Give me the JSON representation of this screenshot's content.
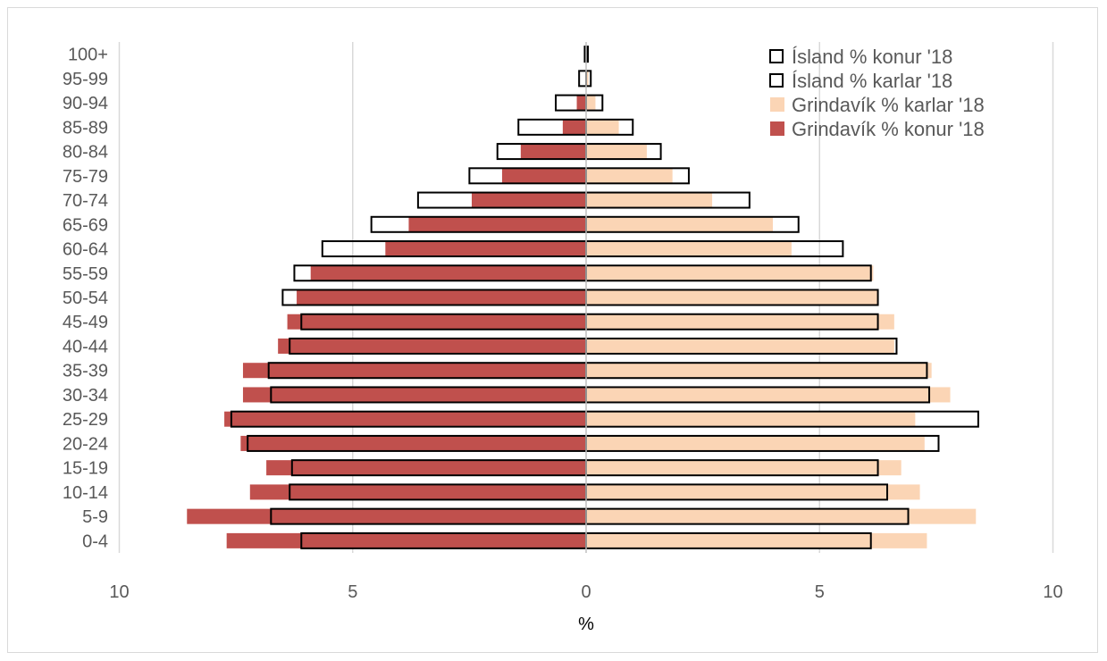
{
  "chart_data": {
    "type": "bar",
    "orientation": "horizontal",
    "title": "",
    "xlabel": "%",
    "ylabel": "",
    "xlim": [
      -10,
      10
    ],
    "x_ticks": [
      -10,
      -5,
      0,
      5,
      10
    ],
    "x_tick_labels": [
      "10",
      "5",
      "0",
      "5",
      "10"
    ],
    "grid": true,
    "legend_position": "top-right",
    "categories": [
      "0-4",
      "5-9",
      "10-14",
      "15-19",
      "20-24",
      "25-29",
      "30-34",
      "35-39",
      "40-44",
      "45-49",
      "50-54",
      "55-59",
      "60-64",
      "65-69",
      "70-74",
      "75-79",
      "80-84",
      "85-89",
      "90-94",
      "95-99",
      "100+"
    ],
    "series": [
      {
        "name": "Ísland % konur '18",
        "color": "#ffffff",
        "stroke": "#000000",
        "side": "left",
        "values": [
          6.1,
          6.75,
          6.35,
          6.3,
          7.25,
          7.6,
          6.75,
          6.8,
          6.35,
          6.1,
          6.5,
          6.25,
          5.65,
          4.6,
          3.6,
          2.5,
          1.9,
          1.45,
          0.65,
          0.15,
          0.03
        ]
      },
      {
        "name": "Ísland % karlar '18",
        "color": "#ffffff",
        "stroke": "#000000",
        "side": "right",
        "values": [
          6.1,
          6.9,
          6.45,
          6.25,
          7.55,
          8.4,
          7.35,
          7.3,
          6.65,
          6.25,
          6.25,
          6.1,
          5.5,
          4.55,
          3.5,
          2.2,
          1.6,
          1.0,
          0.35,
          0.1,
          0.03
        ]
      },
      {
        "name": "Grindavík % karlar '18",
        "color": "#fbd5b5",
        "side": "right",
        "values": [
          7.3,
          8.35,
          7.15,
          6.75,
          7.25,
          7.05,
          7.8,
          7.4,
          6.6,
          6.6,
          6.25,
          6.15,
          4.4,
          4.0,
          2.7,
          1.85,
          1.3,
          0.7,
          0.2,
          0.05,
          0.0
        ]
      },
      {
        "name": "Grindavík % konur '18",
        "color": "#c0504d",
        "side": "left",
        "values": [
          7.7,
          8.55,
          7.2,
          6.85,
          7.4,
          7.75,
          7.35,
          7.35,
          6.6,
          6.4,
          6.2,
          5.9,
          4.3,
          3.8,
          2.45,
          1.8,
          1.4,
          0.5,
          0.2,
          0.0,
          0.0
        ]
      }
    ]
  }
}
